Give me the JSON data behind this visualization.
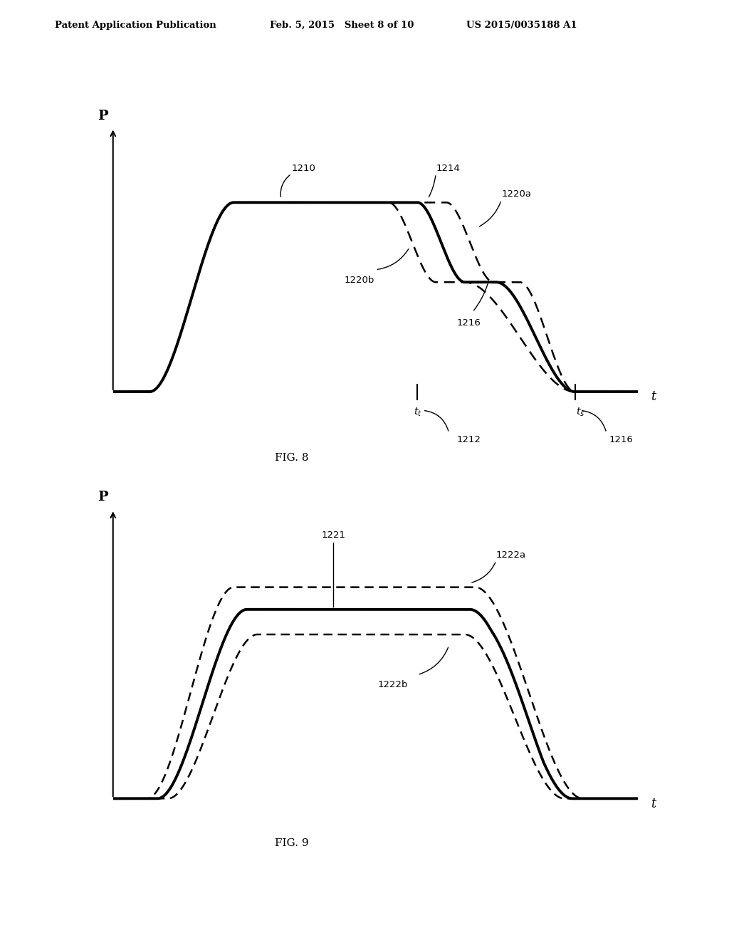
{
  "header_left": "Patent Application Publication",
  "header_mid": "Feb. 5, 2015   Sheet 8 of 10",
  "header_right": "US 2015/0035188 A1",
  "fig8_caption": "FIG. 8",
  "fig9_caption": "FIG. 9",
  "background_color": "#ffffff"
}
